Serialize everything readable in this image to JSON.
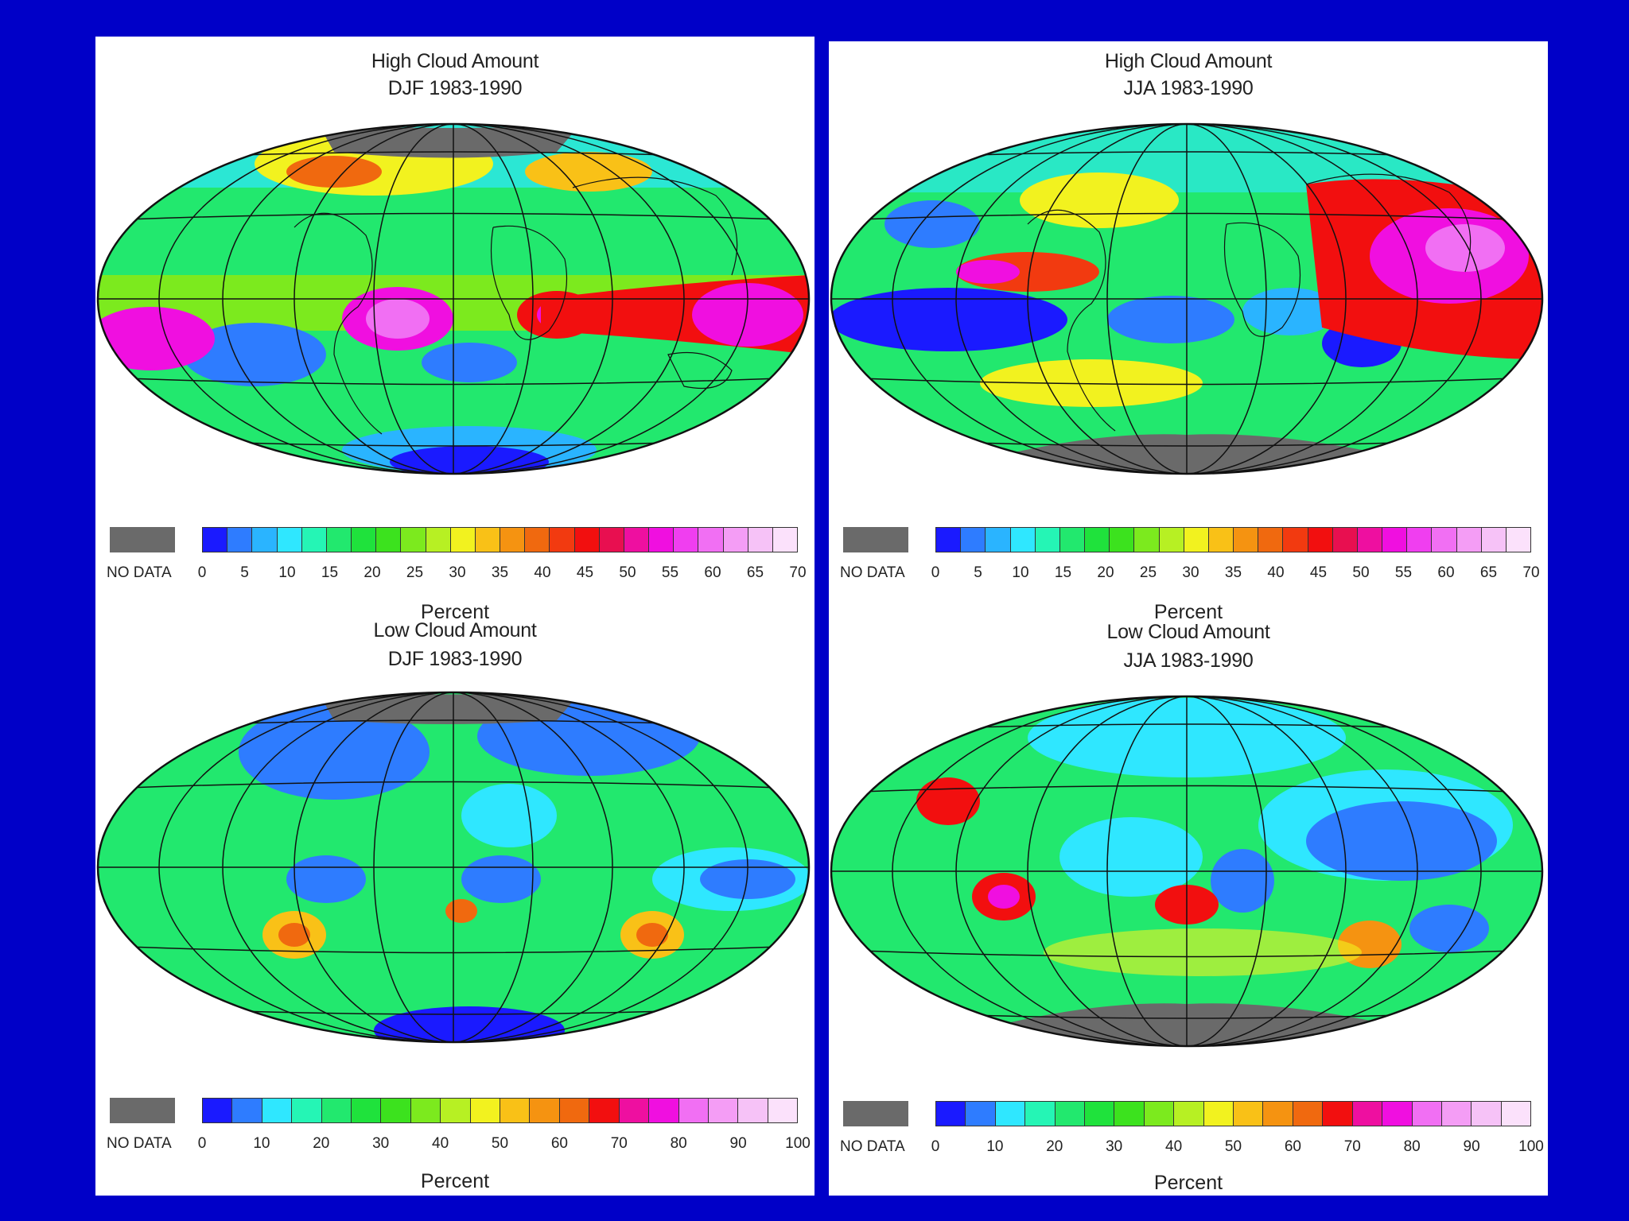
{
  "panels": [
    {
      "id": "high-djf",
      "title": "High Cloud Amount",
      "subtitle": "DJF 1983-1990",
      "nodata_label": "NO DATA",
      "ticks": [
        "0",
        "5",
        "10",
        "15",
        "20",
        "25",
        "30",
        "35",
        "40",
        "45",
        "50",
        "55",
        "60",
        "65",
        "70"
      ],
      "unit": "Percent",
      "palette": [
        "#1a1aff",
        "#2e7cff",
        "#2ab4ff",
        "#2fe7ff",
        "#25f5b5",
        "#22e86e",
        "#1fe23c",
        "#3ce21e",
        "#7cea1e",
        "#b7f023",
        "#f2f21f",
        "#f9c117",
        "#f59311",
        "#f0690f",
        "#f23a10",
        "#f20f0f",
        "#e80f50",
        "#ee0fa0",
        "#f00fe0",
        "#f03ef0",
        "#f16ff3",
        "#f49df5",
        "#f6c2f7",
        "#fbe1fb"
      ],
      "nodata_color": "#6a6a6a"
    },
    {
      "id": "high-jja",
      "title": "High Cloud Amount",
      "subtitle": "JJA 1983-1990",
      "nodata_label": "NO DATA",
      "ticks": [
        "0",
        "5",
        "10",
        "15",
        "20",
        "25",
        "30",
        "35",
        "40",
        "45",
        "50",
        "55",
        "60",
        "65",
        "70"
      ],
      "unit": "Percent",
      "palette": [
        "#1a1aff",
        "#2e7cff",
        "#2ab4ff",
        "#2fe7ff",
        "#25f5b5",
        "#22e86e",
        "#1fe23c",
        "#3ce21e",
        "#7cea1e",
        "#b7f023",
        "#f2f21f",
        "#f9c117",
        "#f59311",
        "#f0690f",
        "#f23a10",
        "#f20f0f",
        "#e80f50",
        "#ee0fa0",
        "#f00fe0",
        "#f03ef0",
        "#f16ff3",
        "#f49df5",
        "#f6c2f7",
        "#fbe1fb"
      ],
      "nodata_color": "#6a6a6a"
    },
    {
      "id": "low-djf",
      "title": "Low Cloud Amount",
      "subtitle": "DJF 1983-1990",
      "nodata_label": "NO DATA",
      "ticks": [
        "0",
        "10",
        "20",
        "30",
        "40",
        "50",
        "60",
        "70",
        "80",
        "90",
        "100"
      ],
      "unit": "Percent",
      "palette": [
        "#1a1aff",
        "#2e7cff",
        "#2fe7ff",
        "#25f5b5",
        "#22e86e",
        "#1fe23c",
        "#3ce21e",
        "#7cea1e",
        "#b7f023",
        "#f2f21f",
        "#f9c117",
        "#f59311",
        "#f0690f",
        "#f20f0f",
        "#ee0fa0",
        "#f00fe0",
        "#f16ff3",
        "#f49df5",
        "#f6c2f7",
        "#fbe1fb"
      ],
      "nodata_color": "#6a6a6a"
    },
    {
      "id": "low-jja",
      "title": "Low Cloud Amount",
      "subtitle": "JJA 1983-1990",
      "nodata_label": "NO DATA",
      "ticks": [
        "0",
        "10",
        "20",
        "30",
        "40",
        "50",
        "60",
        "70",
        "80",
        "90",
        "100"
      ],
      "unit": "Percent",
      "palette": [
        "#1a1aff",
        "#2e7cff",
        "#2fe7ff",
        "#25f5b5",
        "#22e86e",
        "#1fe23c",
        "#3ce21e",
        "#7cea1e",
        "#b7f023",
        "#f2f21f",
        "#f9c117",
        "#f59311",
        "#f0690f",
        "#f20f0f",
        "#ee0fa0",
        "#f00fe0",
        "#f16ff3",
        "#f49df5",
        "#f6c2f7",
        "#fbe1fb"
      ],
      "nodata_color": "#6a6a6a"
    }
  ]
}
